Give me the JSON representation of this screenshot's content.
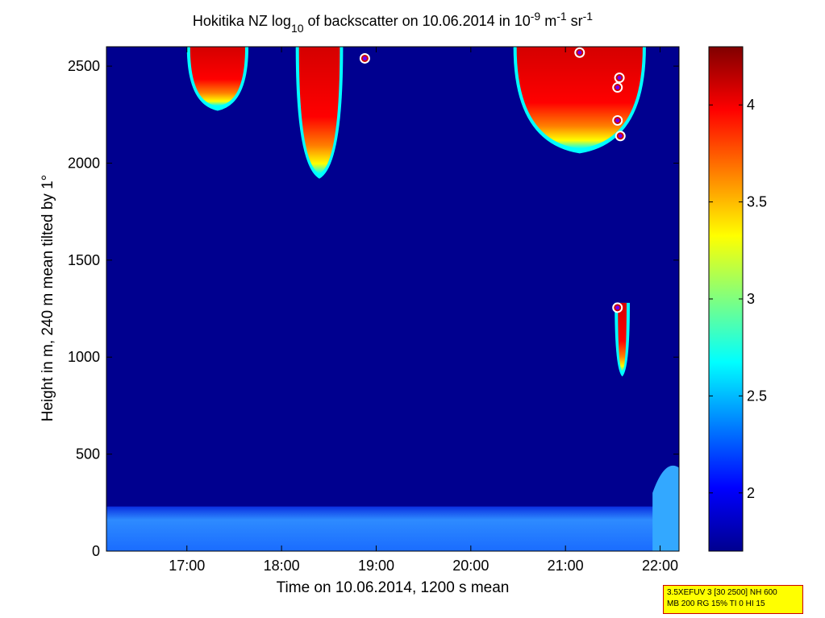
{
  "chart_data": {
    "type": "heatmap",
    "title_parts": {
      "prefix": "Hokitika NZ log",
      "log_base": "10",
      "middle": " of backscatter on 10.06.2014 in 10",
      "exp1": "-9",
      "unit1": " m",
      "exp2": "-1",
      "unit2": " sr",
      "exp3": "-1"
    },
    "xlabel": "Time on 10.06.2014, 1200 s mean",
    "ylabel": "Height in m, 240 m mean tilted by 1°",
    "x_ticks": [
      "17:00",
      "18:00",
      "19:00",
      "20:00",
      "21:00",
      "22:00"
    ],
    "x_tick_hours": [
      17,
      18,
      19,
      20,
      21,
      22
    ],
    "xlim_hours": [
      16.15,
      22.2
    ],
    "y_ticks": [
      0,
      500,
      1000,
      1500,
      2000,
      2500
    ],
    "ylim": [
      0,
      2600
    ],
    "colorbar": {
      "ticks": [
        2,
        2.5,
        3,
        3.5,
        4
      ],
      "range": [
        1.7,
        4.3
      ],
      "colormap": "jet"
    },
    "background_value": 1.75,
    "surface_layer": {
      "top_height_m": 230,
      "value": 2.3
    },
    "cloud_regions": [
      {
        "name": "cloud-1",
        "time_start": 17.0,
        "time_end": 17.65,
        "base_height_m": 2270,
        "top_height_m": 2600
      },
      {
        "name": "cloud-2",
        "time_start": 18.15,
        "time_end": 18.65,
        "base_height_m": 1920,
        "top_height_m": 2600
      },
      {
        "name": "cloud-3",
        "time_start": 20.45,
        "time_end": 21.85,
        "base_height_m": 2050,
        "top_height_m": 2600
      },
      {
        "name": "cloud-4",
        "time_start": 21.52,
        "time_end": 21.68,
        "base_height_m": 900,
        "top_height_m": 1280
      }
    ],
    "markers": [
      {
        "time": 18.88,
        "height": 2540
      },
      {
        "time": 21.15,
        "height": 2570
      },
      {
        "time": 21.57,
        "height": 2440
      },
      {
        "time": 21.55,
        "height": 2390
      },
      {
        "time": 21.55,
        "height": 2220
      },
      {
        "time": 21.58,
        "height": 2140
      },
      {
        "time": 21.55,
        "height": 1255
      }
    ]
  },
  "info_box": {
    "line1": "3.5XEFUV 3 [30 2500] NH 600",
    "line2": "MB 200 RG 15% TI 0 HI 15"
  }
}
